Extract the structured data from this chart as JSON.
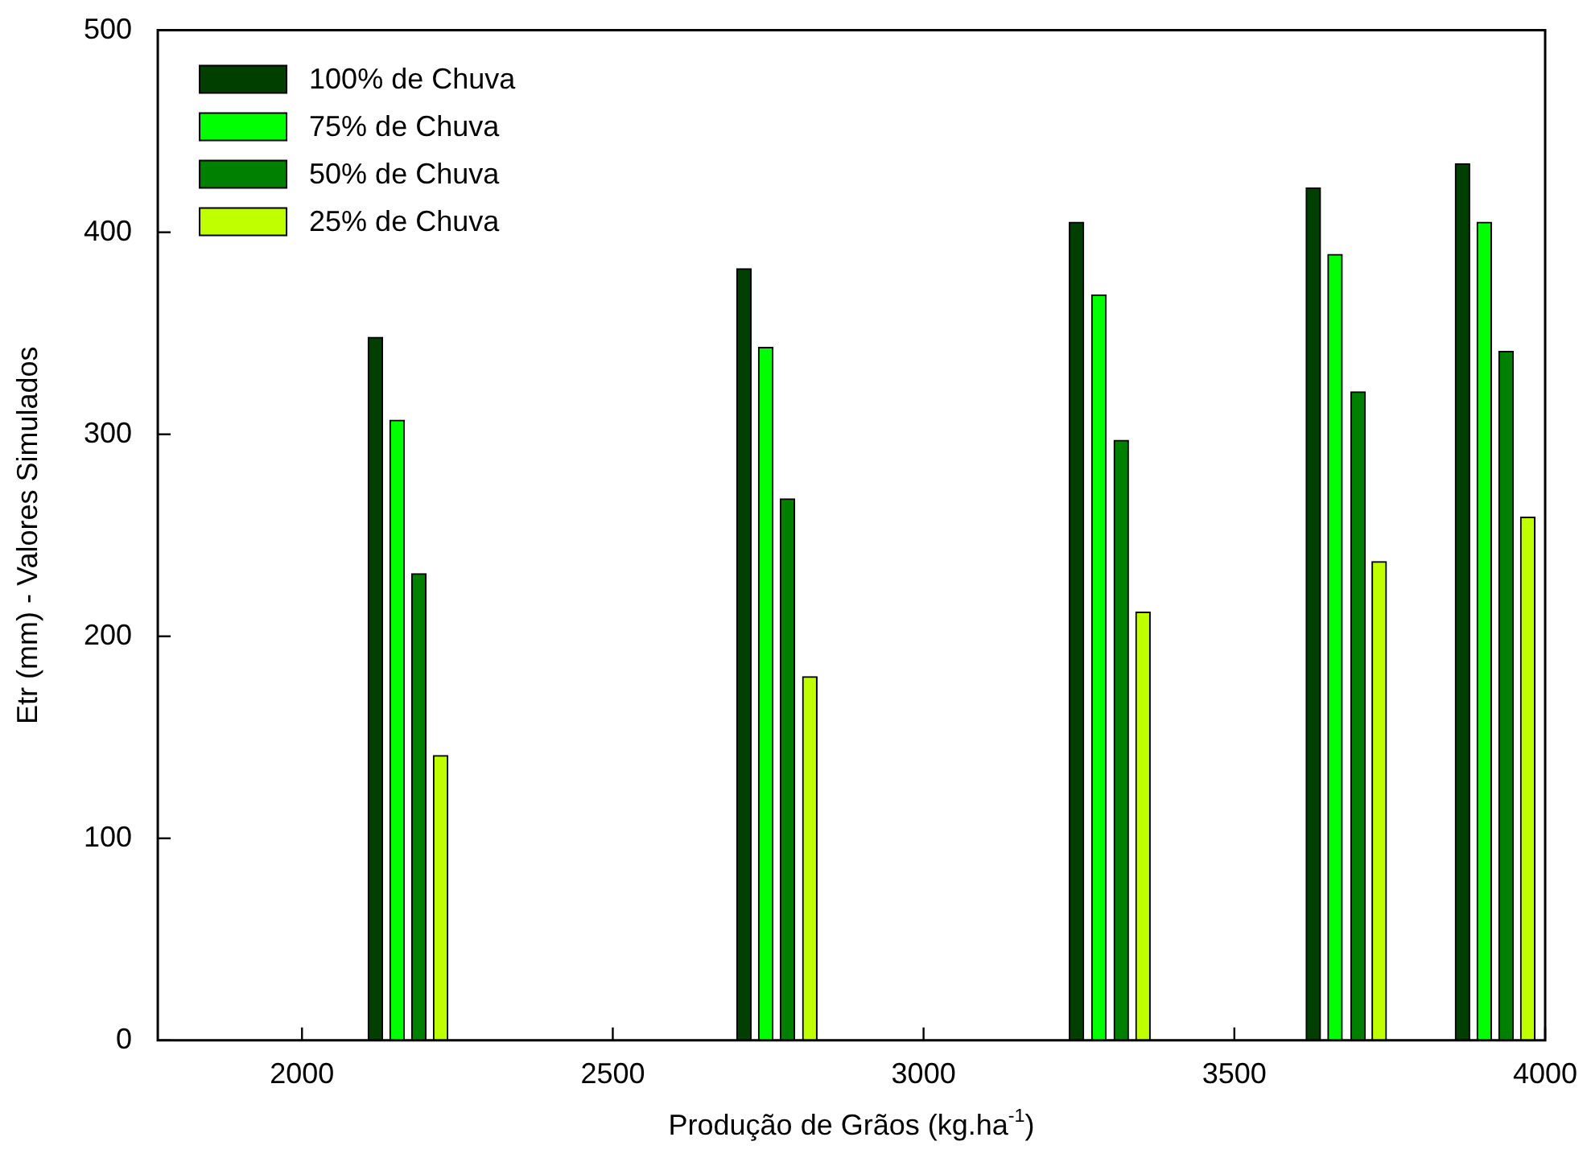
{
  "chart_data": {
    "type": "bar",
    "xlabel": "Produção de Grãos (kg.ha$^{-1}$)",
    "ylabel": "Etr (mm) - Valores Simulados",
    "series": [
      {
        "name": "100% de Chuva",
        "color": "#003f00",
        "x": [
          2118,
          2711,
          3246,
          3627,
          3867
        ],
        "values": [
          348,
          382,
          405,
          422,
          434
        ]
      },
      {
        "name": "75% de Chuva",
        "color": "#00ff00",
        "x": [
          2153,
          2746,
          3282,
          3662,
          3902
        ],
        "values": [
          307,
          343,
          369,
          389,
          405
        ]
      },
      {
        "name": "50% de Chuva",
        "color": "#008000",
        "x": [
          2188,
          2781,
          3318,
          3699,
          3937
        ],
        "values": [
          231,
          268,
          297,
          321,
          341
        ]
      },
      {
        "name": "25% de Chuva",
        "color": "#c0ff00",
        "x": [
          2223,
          2817,
          3353,
          3733,
          3972
        ],
        "values": [
          141,
          180,
          212,
          237,
          259
        ]
      }
    ],
    "xlim": [
      1768,
      4000
    ],
    "xticks": [
      2000,
      2500,
      3000,
      3500,
      4000
    ],
    "ylim": [
      0,
      500
    ],
    "yticks": [
      0,
      100,
      200,
      300,
      400,
      500
    ],
    "legend": "top left"
  }
}
